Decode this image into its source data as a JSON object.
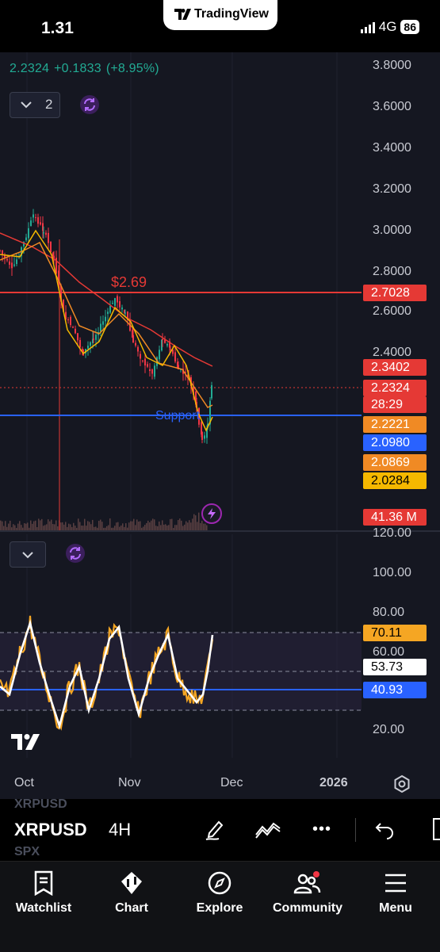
{
  "status_bar": {
    "time": "1.31",
    "network": "4G",
    "battery": "86"
  },
  "app": {
    "name": "TradingView"
  },
  "header": {
    "last": "2.2324",
    "change": "+0.1833",
    "change_pct": "(+8.95%)"
  },
  "controls": {
    "main_indicators_count": "2"
  },
  "price_axis": [
    "3.8000",
    "3.6000",
    "3.4000",
    "3.2000",
    "3.0000",
    "2.8000",
    "2.6000",
    "2.4000"
  ],
  "price_tags": [
    {
      "value": "2.7028",
      "color": "#e53935"
    },
    {
      "value": "2.3402",
      "color": "#e53935"
    },
    {
      "value": "2.2324",
      "color": "#e53935"
    },
    {
      "value": "28:29",
      "color": "#e53935"
    },
    {
      "value": "2.2221",
      "color": "#f08a24"
    },
    {
      "value": "2.0980",
      "color": "#2962ff"
    },
    {
      "value": "2.0869",
      "color": "#f08a24"
    },
    {
      "value": "2.0284",
      "color": "#f5b800"
    },
    {
      "value": "41.36 M",
      "color": "#e53935"
    }
  ],
  "lines": {
    "resistance_label": "$2.69",
    "support_label": "Support"
  },
  "rsi_axis": [
    "120.00",
    "100.00",
    "80.00",
    "60.00",
    "20.00"
  ],
  "rsi_tags": [
    {
      "value": "70.11",
      "color": "#f5a623",
      "text_color": "#000000"
    },
    {
      "value": "53.73",
      "color": "#ffffff",
      "text_color": "#000000"
    },
    {
      "value": "40.93",
      "color": "#2962ff",
      "text_color": "#ffffff"
    }
  ],
  "time_axis": [
    "Oct",
    "Nov",
    "Dec",
    "2026"
  ],
  "toolbar": {
    "symbol": "XRPUSD",
    "interval": "4H",
    "ghost_above": "XRPUSD",
    "ghost_below": "SPX",
    "more": "•••"
  },
  "nav": [
    {
      "label": "Watchlist",
      "icon": "watchlist-icon"
    },
    {
      "label": "Chart",
      "icon": "chart-icon"
    },
    {
      "label": "Explore",
      "icon": "explore-icon"
    },
    {
      "label": "Community",
      "icon": "community-icon"
    },
    {
      "label": "Menu",
      "icon": "menu-icon"
    }
  ],
  "colors": {
    "background": "#151721",
    "up": "#22ab94",
    "down": "#f23645",
    "resistance": "#e53935",
    "support": "#2962ff",
    "rsi": "#f5a623",
    "rsi_ma": "#ffffff",
    "accent": "#9c27b0"
  }
}
